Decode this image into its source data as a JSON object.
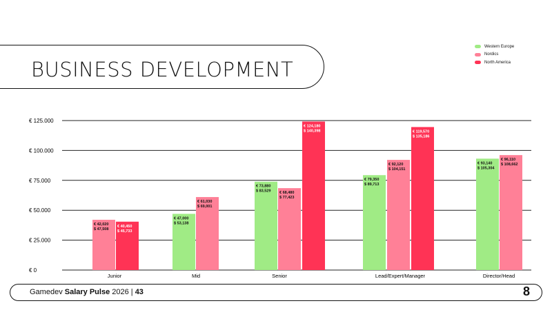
{
  "header": {
    "title": "BUSINESS DEVELOPMENT"
  },
  "footer": {
    "prefix": "Gamedev ",
    "brand": "Salary Pulse",
    "year": " 2026 | ",
    "page": "43",
    "logo": "8"
  },
  "colors": {
    "Western Europe": "#a0eb85",
    "Nordics": "#ff8097",
    "North America": "#ff3355"
  },
  "chart_data": {
    "type": "bar",
    "title": "BUSINESS DEVELOPMENT",
    "categories": [
      "Junior",
      "Mid",
      "Senior",
      "Lead/Expert/Manager",
      "Director/Head"
    ],
    "ylim": [
      0,
      125000
    ],
    "yticks": [
      {
        "v": 0,
        "label": "€ 0"
      },
      {
        "v": 25000,
        "label": "€ 25.000"
      },
      {
        "v": 50000,
        "label": "€ 50.000"
      },
      {
        "v": 75000,
        "label": "€ 75.000"
      },
      {
        "v": 100000,
        "label": "€ 100.000"
      },
      {
        "v": 125000,
        "label": "€ 125.000"
      }
    ],
    "legend": "top-right",
    "series": [
      {
        "name": "Western Europe",
        "values": [
          null,
          47000,
          73880,
          79350,
          93140
        ],
        "usd": [
          null,
          53138,
          83529,
          89713,
          105304
        ],
        "labels": [
          null,
          "€ 47,000",
          "€ 73,880",
          "€ 79,350",
          "€ 93,140"
        ],
        "usd_labels": [
          null,
          "$ 53,138",
          "$ 83,529",
          "$ 89,713",
          "$ 105,304"
        ]
      },
      {
        "name": "Nordics",
        "values": [
          42020,
          61030,
          68480,
          92120,
          96110
        ],
        "usd": [
          47508,
          69001,
          77423,
          104151,
          108662
        ],
        "labels": [
          "€ 42,020",
          "€ 61,030",
          "€ 68,480",
          "€ 92,120",
          "€ 96,110"
        ],
        "usd_labels": [
          "$ 47,508",
          "$ 69,001",
          "$ 77,423",
          "$ 104,151",
          "$ 108,662"
        ]
      },
      {
        "name": "North America",
        "values": [
          40450,
          null,
          124180,
          119570,
          null
        ],
        "usd": [
          45733,
          null,
          140398,
          135186,
          null
        ],
        "labels": [
          "€ 40,450",
          null,
          "€ 124,180",
          "€ 119,570",
          null
        ],
        "usd_labels": [
          "$ 45,733",
          null,
          "$ 140,398",
          "$ 135,186",
          null
        ]
      }
    ]
  }
}
